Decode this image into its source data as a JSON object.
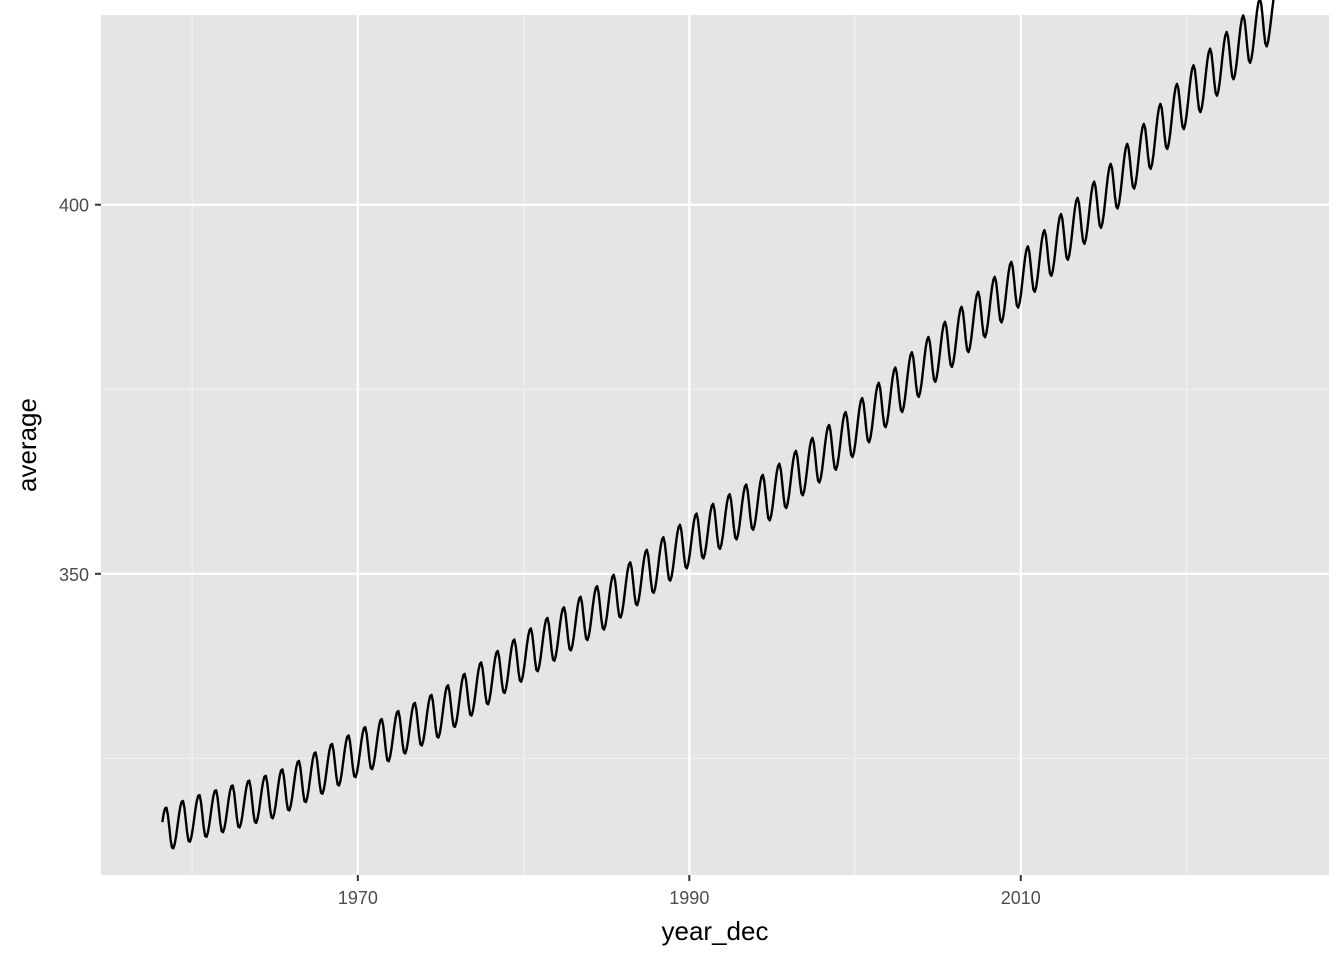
{
  "chart_data": {
    "type": "line",
    "title": "",
    "xlabel": "year_dec",
    "ylabel": "average",
    "xlim": [
      1954.5,
      2028.6
    ],
    "ylim": [
      309.2,
      425.7
    ],
    "x_ticks": [
      1970,
      1990,
      2010
    ],
    "x_tick_labels": [
      "1970",
      "1990",
      "2010"
    ],
    "x_minor_ticks": [
      1960,
      1980,
      2000,
      2020
    ],
    "y_ticks": [
      350,
      400
    ],
    "y_tick_labels": [
      "350",
      "400"
    ],
    "y_minor_ticks": [
      325,
      375
    ],
    "grid": true,
    "legend": "none",
    "series": [
      {
        "color": "#000000",
        "x_start": 1958.2,
        "x_end": 2025.5,
        "step": 0.0833,
        "trend_anchors": {
          "x": [
            1958,
            1960,
            1965,
            1970,
            1975,
            1980,
            1985,
            1990,
            1995,
            2000,
            2005,
            2010,
            2015,
            2020,
            2025
          ],
          "y": [
            315.0,
            316.8,
            320.0,
            325.7,
            331.1,
            338.8,
            345.9,
            354.3,
            360.8,
            369.5,
            379.8,
            389.9,
            400.8,
            414.3,
            425.5
          ]
        },
        "seasonal_amplitude": [
          3.0,
          3.7
        ],
        "seasonal_peak_month": 5,
        "seasonal_trough_month": 10
      }
    ]
  },
  "colors": {
    "panel_background": "#e5e5e5",
    "grid_major": "#ffffff",
    "grid_minor": "#f2f2f2",
    "tick_mark": "#333333",
    "tick_label": "#4d4d4d"
  }
}
